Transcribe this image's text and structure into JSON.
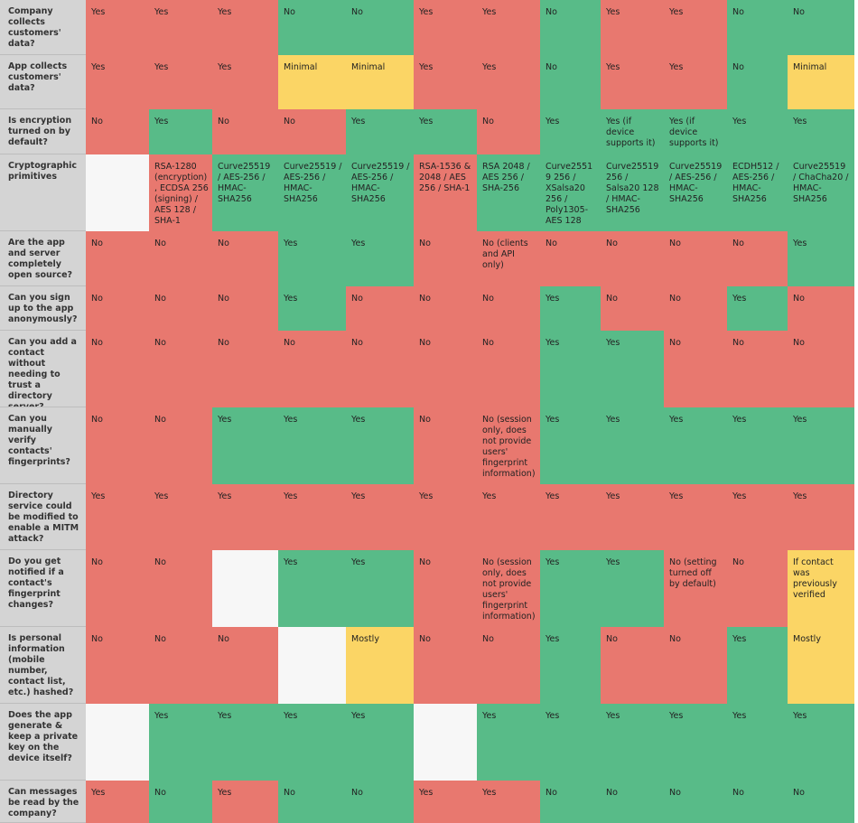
{
  "rows": [
    {
      "label": "Company collects customers' data?",
      "cells": [
        {
          "text": "Yes",
          "status": "red"
        },
        {
          "text": "Yes",
          "status": "red"
        },
        {
          "text": "Yes",
          "status": "red"
        },
        {
          "text": "No",
          "status": "green"
        },
        {
          "text": "No",
          "status": "green"
        },
        {
          "text": "Yes",
          "status": "red"
        },
        {
          "text": "Yes",
          "status": "red"
        },
        {
          "text": "No",
          "status": "green"
        },
        {
          "text": "Yes",
          "status": "red"
        },
        {
          "text": "Yes",
          "status": "red"
        },
        {
          "text": "No",
          "status": "green"
        },
        {
          "text": "No",
          "status": "green"
        }
      ]
    },
    {
      "label": "App collects customers' data?",
      "cells": [
        {
          "text": "Yes",
          "status": "red"
        },
        {
          "text": "Yes",
          "status": "red"
        },
        {
          "text": "Yes",
          "status": "red"
        },
        {
          "text": "Minimal",
          "status": "yellow"
        },
        {
          "text": "Minimal",
          "status": "yellow"
        },
        {
          "text": "Yes",
          "status": "red"
        },
        {
          "text": "Yes",
          "status": "red"
        },
        {
          "text": "No",
          "status": "green"
        },
        {
          "text": "Yes",
          "status": "red"
        },
        {
          "text": "Yes",
          "status": "red"
        },
        {
          "text": "No",
          "status": "green"
        },
        {
          "text": "Minimal",
          "status": "yellow"
        }
      ]
    },
    {
      "label": "Is encryption turned on by default?",
      "cells": [
        {
          "text": "No",
          "status": "red"
        },
        {
          "text": "Yes",
          "status": "green"
        },
        {
          "text": "No",
          "status": "red"
        },
        {
          "text": "No",
          "status": "red"
        },
        {
          "text": "Yes",
          "status": "green"
        },
        {
          "text": "Yes",
          "status": "green"
        },
        {
          "text": "No",
          "status": "red"
        },
        {
          "text": "Yes",
          "status": "green"
        },
        {
          "text": "Yes (if device supports it)",
          "status": "green"
        },
        {
          "text": "Yes (if device supports it)",
          "status": "green"
        },
        {
          "text": "Yes",
          "status": "green"
        },
        {
          "text": "Yes",
          "status": "green"
        }
      ]
    },
    {
      "label": "Cryptographic primitives",
      "cells": [
        {
          "text": "",
          "status": "blank"
        },
        {
          "text": "RSA-1280 (encryption), ECDSA 256 (signing) / AES 128 / SHA-1",
          "status": "red"
        },
        {
          "text": "Curve25519 / AES-256 / HMAC-SHA256",
          "status": "green"
        },
        {
          "text": "Curve25519 / AES-256 / HMAC-SHA256",
          "status": "green"
        },
        {
          "text": "Curve25519 / AES-256 / HMAC-SHA256",
          "status": "green"
        },
        {
          "text": "RSA-1536 & 2048 / AES 256 / SHA-1",
          "status": "red"
        },
        {
          "text": "RSA 2048 / AES 256 / SHA-256",
          "status": "green"
        },
        {
          "text": "Curve25519 256 / XSalsa20 256 / Poly1305-AES 128",
          "status": "green"
        },
        {
          "text": "Curve25519 256 / Salsa20 128 / HMAC-SHA256",
          "status": "green"
        },
        {
          "text": "Curve25519 / AES-256 / HMAC-SHA256",
          "status": "green"
        },
        {
          "text": "ECDH512 / AES-256 / HMAC-SHA256",
          "status": "green"
        },
        {
          "text": "Curve25519 / ChaCha20 / HMAC-SHA256",
          "status": "green"
        }
      ]
    },
    {
      "label": "Are the app and server completely open source?",
      "cells": [
        {
          "text": "No",
          "status": "red"
        },
        {
          "text": "No",
          "status": "red"
        },
        {
          "text": "No",
          "status": "red"
        },
        {
          "text": "Yes",
          "status": "green"
        },
        {
          "text": "Yes",
          "status": "green"
        },
        {
          "text": "No",
          "status": "red"
        },
        {
          "text": "No (clients and API only)",
          "status": "red"
        },
        {
          "text": "No",
          "status": "red"
        },
        {
          "text": "No",
          "status": "red"
        },
        {
          "text": "No",
          "status": "red"
        },
        {
          "text": "No",
          "status": "red"
        },
        {
          "text": "Yes",
          "status": "green"
        }
      ]
    },
    {
      "label": "Can you sign up to the app anonymously?",
      "cells": [
        {
          "text": "No",
          "status": "red"
        },
        {
          "text": "No",
          "status": "red"
        },
        {
          "text": "No",
          "status": "red"
        },
        {
          "text": "Yes",
          "status": "green"
        },
        {
          "text": "No",
          "status": "red"
        },
        {
          "text": "No",
          "status": "red"
        },
        {
          "text": "No",
          "status": "red"
        },
        {
          "text": "Yes",
          "status": "green"
        },
        {
          "text": "No",
          "status": "red"
        },
        {
          "text": "No",
          "status": "red"
        },
        {
          "text": "Yes",
          "status": "green"
        },
        {
          "text": "No",
          "status": "red"
        }
      ]
    },
    {
      "label": "Can you add a contact without needing to trust a directory server?",
      "cells": [
        {
          "text": "No",
          "status": "red"
        },
        {
          "text": "No",
          "status": "red"
        },
        {
          "text": "No",
          "status": "red"
        },
        {
          "text": "No",
          "status": "red"
        },
        {
          "text": "No",
          "status": "red"
        },
        {
          "text": "No",
          "status": "red"
        },
        {
          "text": "No",
          "status": "red"
        },
        {
          "text": "Yes",
          "status": "green"
        },
        {
          "text": "Yes",
          "status": "green"
        },
        {
          "text": "No",
          "status": "red"
        },
        {
          "text": "No",
          "status": "red"
        },
        {
          "text": "No",
          "status": "red"
        }
      ]
    },
    {
      "label": "Can you manually verify contacts' fingerprints?",
      "cells": [
        {
          "text": "No",
          "status": "red"
        },
        {
          "text": "No",
          "status": "red"
        },
        {
          "text": "Yes",
          "status": "green"
        },
        {
          "text": "Yes",
          "status": "green"
        },
        {
          "text": "Yes",
          "status": "green"
        },
        {
          "text": "No",
          "status": "red"
        },
        {
          "text": "No (session only, does not provide users' fingerprint information)",
          "status": "red"
        },
        {
          "text": "Yes",
          "status": "green"
        },
        {
          "text": "Yes",
          "status": "green"
        },
        {
          "text": "Yes",
          "status": "green"
        },
        {
          "text": "Yes",
          "status": "green"
        },
        {
          "text": "Yes",
          "status": "green"
        }
      ]
    },
    {
      "label": "Directory service could be modified to enable a MITM attack?",
      "cells": [
        {
          "text": "Yes",
          "status": "red"
        },
        {
          "text": "Yes",
          "status": "red"
        },
        {
          "text": "Yes",
          "status": "red"
        },
        {
          "text": "Yes",
          "status": "red"
        },
        {
          "text": "Yes",
          "status": "red"
        },
        {
          "text": "Yes",
          "status": "red"
        },
        {
          "text": "Yes",
          "status": "red"
        },
        {
          "text": "Yes",
          "status": "red"
        },
        {
          "text": "Yes",
          "status": "red"
        },
        {
          "text": "Yes",
          "status": "red"
        },
        {
          "text": "Yes",
          "status": "red"
        },
        {
          "text": "Yes",
          "status": "red"
        }
      ]
    },
    {
      "label": "Do you get notified if a contact's fingerprint changes?",
      "cells": [
        {
          "text": "No",
          "status": "red"
        },
        {
          "text": "No",
          "status": "red"
        },
        {
          "text": "",
          "status": "blank"
        },
        {
          "text": "Yes",
          "status": "green"
        },
        {
          "text": "Yes",
          "status": "green"
        },
        {
          "text": "No",
          "status": "red"
        },
        {
          "text": "No (session only, does not provide users' fingerprint information)",
          "status": "red"
        },
        {
          "text": "Yes",
          "status": "green"
        },
        {
          "text": "Yes",
          "status": "green"
        },
        {
          "text": "No (setting turned off by default)",
          "status": "red"
        },
        {
          "text": "No",
          "status": "red"
        },
        {
          "text": "If contact was previously verified",
          "status": "yellow"
        }
      ]
    },
    {
      "label": "Is personal information (mobile number, contact list, etc.) hashed?",
      "cells": [
        {
          "text": "No",
          "status": "red"
        },
        {
          "text": "No",
          "status": "red"
        },
        {
          "text": "No",
          "status": "red"
        },
        {
          "text": "",
          "status": "blank"
        },
        {
          "text": "Mostly",
          "status": "yellow"
        },
        {
          "text": "No",
          "status": "red"
        },
        {
          "text": "No",
          "status": "red"
        },
        {
          "text": "Yes",
          "status": "green"
        },
        {
          "text": "No",
          "status": "red"
        },
        {
          "text": "No",
          "status": "red"
        },
        {
          "text": "Yes",
          "status": "green"
        },
        {
          "text": "Mostly",
          "status": "yellow"
        }
      ]
    },
    {
      "label": "Does the app generate & keep a private key on the device itself?",
      "cells": [
        {
          "text": "",
          "status": "blank"
        },
        {
          "text": "Yes",
          "status": "green"
        },
        {
          "text": "Yes",
          "status": "green"
        },
        {
          "text": "Yes",
          "status": "green"
        },
        {
          "text": "Yes",
          "status": "green"
        },
        {
          "text": "",
          "status": "blank"
        },
        {
          "text": "Yes",
          "status": "green"
        },
        {
          "text": "Yes",
          "status": "green"
        },
        {
          "text": "Yes",
          "status": "green"
        },
        {
          "text": "Yes",
          "status": "green"
        },
        {
          "text": "Yes",
          "status": "green"
        },
        {
          "text": "Yes",
          "status": "green"
        }
      ]
    },
    {
      "label": "Can messages be read by the company?",
      "cells": [
        {
          "text": "Yes",
          "status": "red"
        },
        {
          "text": "No",
          "status": "green"
        },
        {
          "text": "Yes",
          "status": "red"
        },
        {
          "text": "No",
          "status": "green"
        },
        {
          "text": "No",
          "status": "green"
        },
        {
          "text": "Yes",
          "status": "red"
        },
        {
          "text": "Yes",
          "status": "red"
        },
        {
          "text": "No",
          "status": "green"
        },
        {
          "text": "No",
          "status": "green"
        },
        {
          "text": "No",
          "status": "green"
        },
        {
          "text": "No",
          "status": "green"
        },
        {
          "text": "No",
          "status": "green"
        }
      ]
    }
  ],
  "colors": {
    "red": "#e8786f",
    "green": "#58bb88",
    "yellow": "#fbd565",
    "blank": "#f7f7f7",
    "header": "#d4d4d4"
  }
}
